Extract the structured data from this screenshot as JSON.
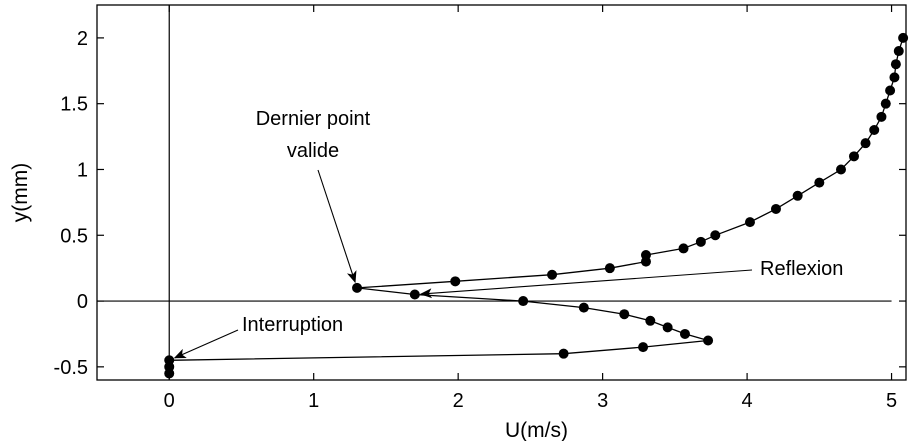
{
  "chart_data": {
    "type": "line",
    "xlabel": "U(m/s)",
    "ylabel": "y(mm)",
    "xlim": [
      -0.5,
      5.1
    ],
    "ylim": [
      -0.6,
      2.25
    ],
    "xticks": [
      0,
      1,
      2,
      3,
      4,
      5
    ],
    "yticks": [
      -0.5,
      0,
      0.5,
      1,
      1.5,
      2
    ],
    "xtick_labels": [
      "0",
      "1",
      "2",
      "3",
      "4",
      "5"
    ],
    "ytick_labels": [
      "-0.5",
      "0",
      "0.5",
      "1",
      "1.5",
      "2"
    ],
    "grid": false,
    "reference_lines": {
      "x": 0,
      "y": 0
    },
    "series": [
      {
        "marker": "filled-circle",
        "color": "#000000",
        "points": [
          [
            5.08,
            2.0
          ],
          [
            5.05,
            1.9
          ],
          [
            5.03,
            1.8
          ],
          [
            5.02,
            1.7
          ],
          [
            4.99,
            1.6
          ],
          [
            4.96,
            1.5
          ],
          [
            4.93,
            1.4
          ],
          [
            4.88,
            1.3
          ],
          [
            4.82,
            1.2
          ],
          [
            4.74,
            1.1
          ],
          [
            4.65,
            1.0
          ],
          [
            4.5,
            0.9
          ],
          [
            4.35,
            0.8
          ],
          [
            4.2,
            0.7
          ],
          [
            4.02,
            0.6
          ],
          [
            3.78,
            0.5
          ],
          [
            3.68,
            0.45
          ],
          [
            3.56,
            0.4
          ],
          [
            3.3,
            0.35
          ],
          [
            3.3,
            0.3
          ],
          [
            3.05,
            0.25
          ],
          [
            2.65,
            0.2
          ],
          [
            1.98,
            0.15
          ],
          [
            1.3,
            0.1
          ],
          [
            1.7,
            0.05
          ],
          [
            2.45,
            0.0
          ],
          [
            2.87,
            -0.05
          ],
          [
            3.15,
            -0.1
          ],
          [
            3.33,
            -0.15
          ],
          [
            3.45,
            -0.2
          ],
          [
            3.57,
            -0.25
          ],
          [
            3.73,
            -0.3
          ],
          [
            3.28,
            -0.35
          ],
          [
            2.73,
            -0.4
          ],
          [
            0.0,
            -0.45
          ],
          [
            0.0,
            -0.5
          ],
          [
            0.0,
            -0.55
          ]
        ]
      }
    ],
    "annotations": [
      {
        "lines": [
          "Dernier point",
          "valide"
        ],
        "points_to": [
          1.3,
          0.1
        ]
      },
      {
        "lines": [
          "Reflexion"
        ],
        "points_to": [
          1.7,
          0.05
        ]
      },
      {
        "lines": [
          "Interruption"
        ],
        "points_to": [
          0.0,
          -0.45
        ]
      }
    ]
  }
}
